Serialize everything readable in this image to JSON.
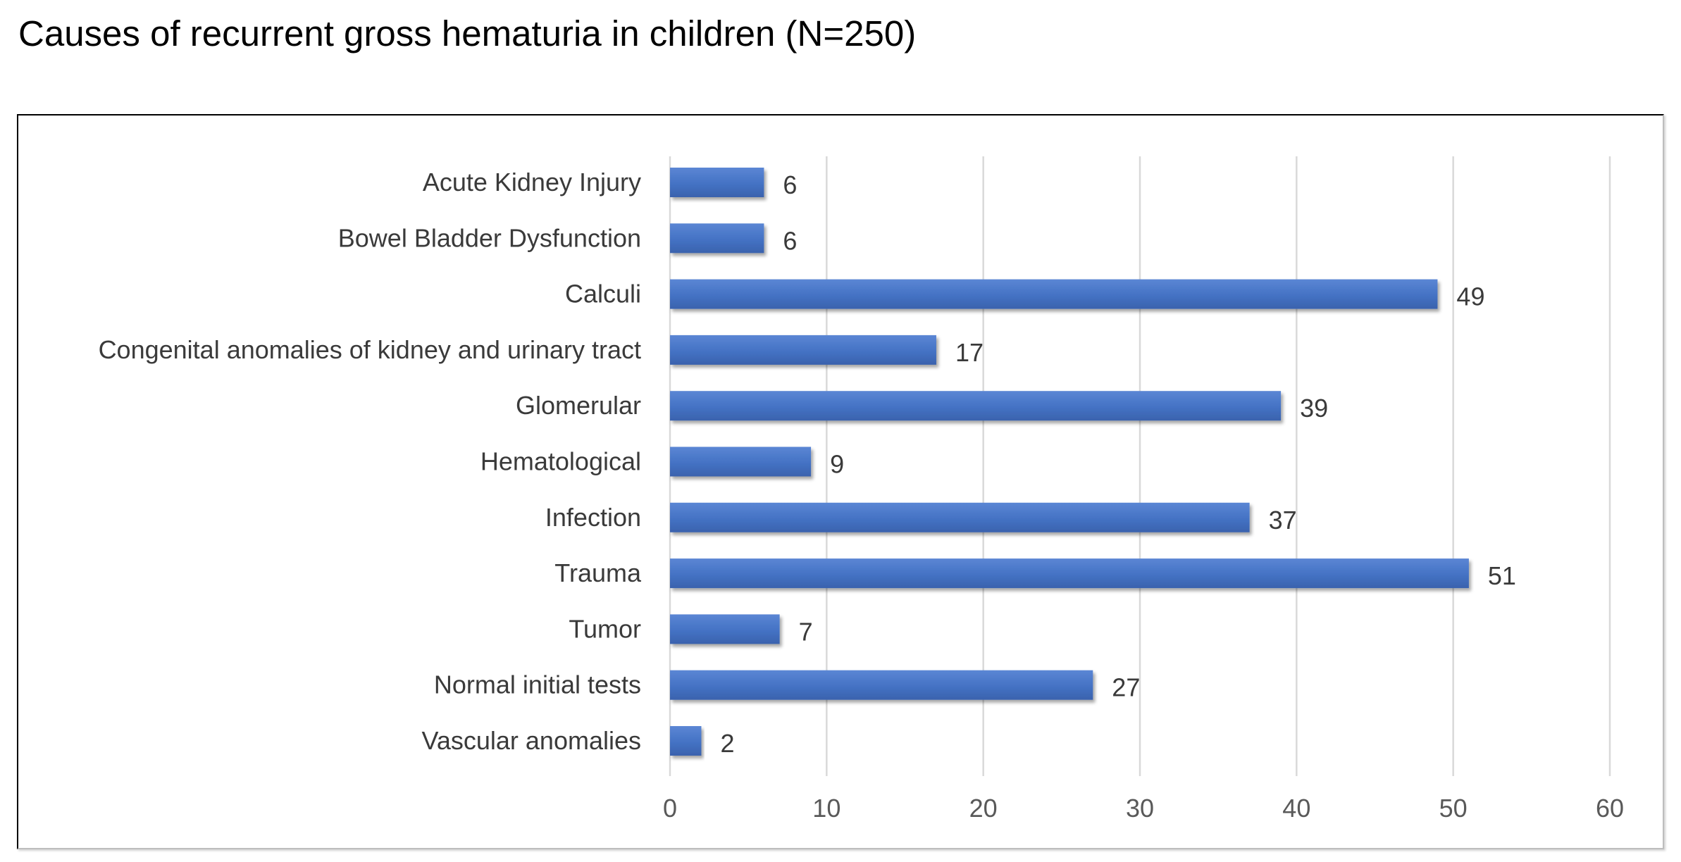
{
  "title": "Causes of recurrent gross hematuria in children (N=250)",
  "chart_data": {
    "type": "bar",
    "orientation": "horizontal",
    "title": "Causes of recurrent gross hematuria in children (N=250)",
    "categories": [
      "Acute Kidney Injury",
      "Bowel Bladder Dysfunction",
      "Calculi",
      "Congenital anomalies of kidney and urinary tract",
      "Glomerular",
      "Hematological",
      "Infection",
      "Trauma",
      "Tumor",
      "Normal initial tests",
      "Vascular anomalies"
    ],
    "values": [
      6,
      6,
      49,
      17,
      39,
      9,
      37,
      51,
      7,
      27,
      2
    ],
    "xlim": [
      0,
      60
    ],
    "xticks": [
      0,
      10,
      20,
      30,
      40,
      50,
      60
    ],
    "grid": true,
    "data_labels": true,
    "bar_color": "#4472c4"
  }
}
